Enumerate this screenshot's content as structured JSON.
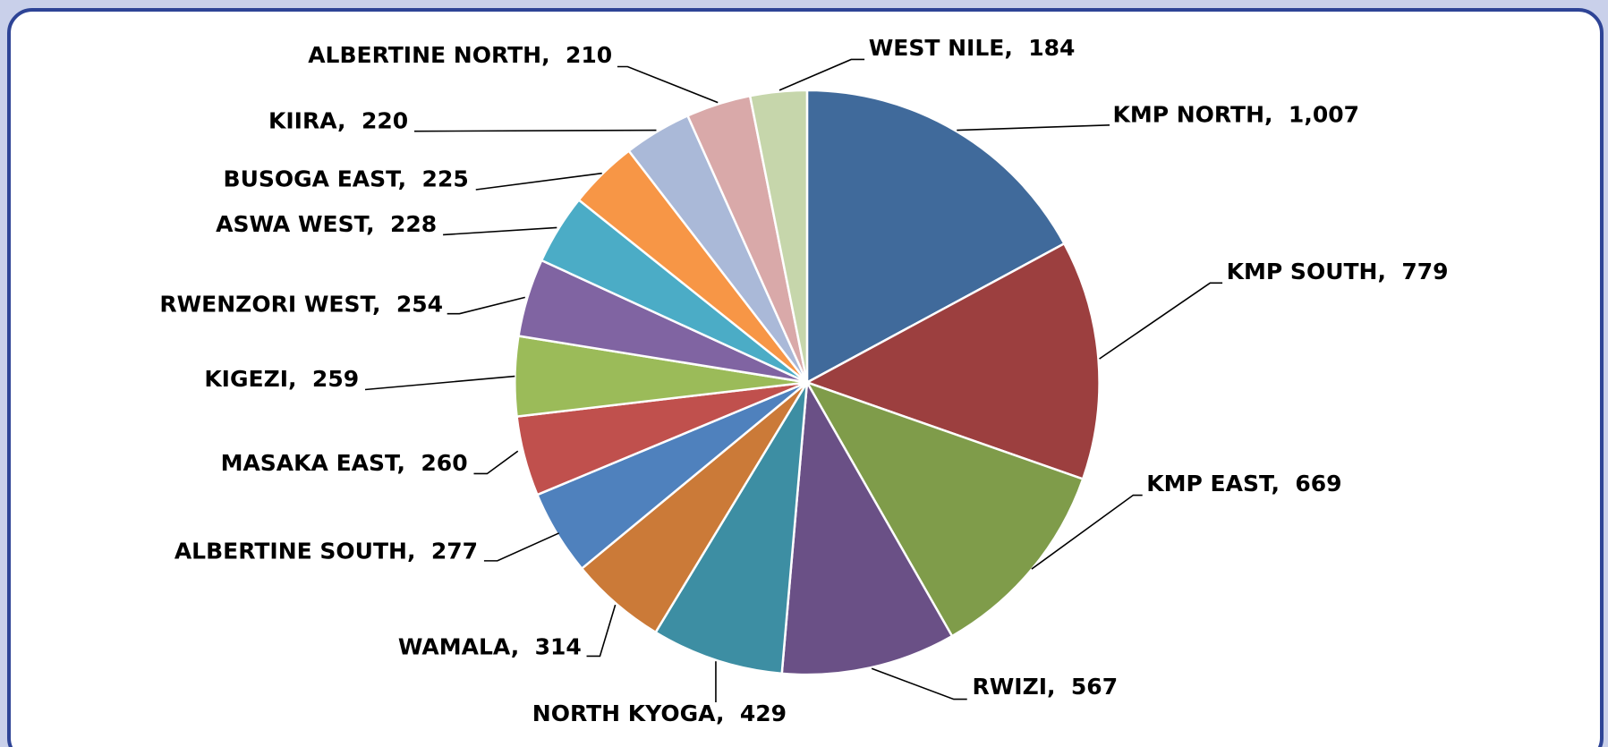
{
  "chart_data": {
    "type": "pie",
    "categories": [
      "KMP NORTH",
      "KMP SOUTH",
      "KMP EAST",
      "RWIZI",
      "NORTH KYOGA",
      "WAMALA",
      "ALBERTINE SOUTH",
      "MASAKA EAST",
      "KIGEZI",
      "RWENZORI WEST",
      "ASWA WEST",
      "BUSOGA EAST",
      "KIIRA",
      "ALBERTINE NORTH",
      "WEST NILE"
    ],
    "values": [
      1007,
      779,
      669,
      567,
      429,
      314,
      277,
      260,
      259,
      254,
      228,
      225,
      220,
      210,
      184
    ],
    "value_labels": [
      "1,007",
      "779",
      "669",
      "567",
      "429",
      "314",
      "277",
      "260",
      "259",
      "254",
      "228",
      "225",
      "220",
      "210",
      "184"
    ],
    "colors": [
      "#406a9b",
      "#9c3f3f",
      "#7f9c4a",
      "#6a5086",
      "#3d8ea3",
      "#cb7a38",
      "#4f81bd",
      "#c0504d",
      "#9bbb59",
      "#8064a2",
      "#4bacc6",
      "#f79646",
      "#aab9d8",
      "#d9a9a9",
      "#c6d6ab"
    ]
  }
}
